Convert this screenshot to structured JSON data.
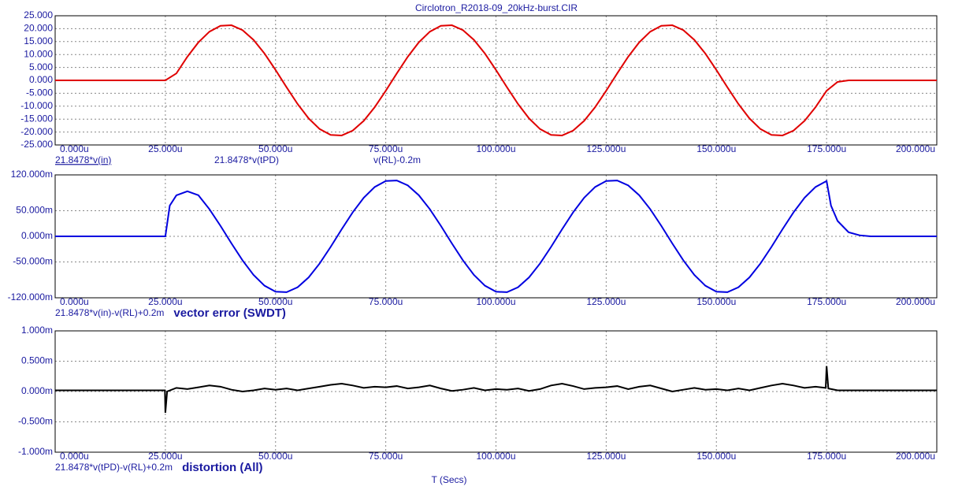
{
  "chart_data": [
    {
      "type": "line",
      "title": "Circlotron_R2018-09_20kHz-burst.CIR",
      "x": [
        0,
        2.5,
        5,
        7.5,
        10,
        12.5,
        15,
        17.5,
        20,
        22.5,
        25,
        27.5,
        30,
        32.5,
        35,
        37.5,
        40,
        42.5,
        45,
        47.5,
        50,
        52.5,
        55,
        57.5,
        60,
        62.5,
        65,
        67.5,
        70,
        72.5,
        75,
        77.5,
        80,
        82.5,
        85,
        87.5,
        90,
        92.5,
        95,
        97.5,
        100,
        102.5,
        105,
        107.5,
        110,
        112.5,
        115,
        117.5,
        120,
        122.5,
        125,
        127.5,
        130,
        132.5,
        135,
        137.5,
        140,
        142.5,
        145,
        147.5,
        150,
        152.5,
        155,
        157.5,
        160,
        162.5,
        165,
        167.5,
        170,
        172.5,
        175,
        177.5,
        180,
        182.5,
        185,
        187.5,
        190,
        192.5,
        195,
        197.5,
        200
      ],
      "series": [
        {
          "name": "v(RL)-0.2m",
          "color": "#e00000",
          "values": [
            0,
            0,
            0,
            0,
            0,
            0,
            0,
            0,
            0,
            0,
            0,
            2.69,
            9.15,
            14.72,
            18.84,
            21.12,
            21.33,
            19.45,
            15.67,
            10.36,
            4.03,
            -2.69,
            -9.15,
            -14.72,
            -18.84,
            -21.12,
            -21.33,
            -19.45,
            -15.67,
            -10.36,
            -4.03,
            2.69,
            9.15,
            14.72,
            18.84,
            21.12,
            21.33,
            19.45,
            15.67,
            10.36,
            4.03,
            -2.69,
            -9.15,
            -14.72,
            -18.84,
            -21.12,
            -21.33,
            -19.45,
            -15.67,
            -10.36,
            -4.03,
            2.69,
            9.15,
            14.72,
            18.84,
            21.12,
            21.33,
            19.45,
            15.67,
            10.36,
            4.03,
            -2.69,
            -9.15,
            -14.72,
            -18.84,
            -21.12,
            -21.33,
            -19.45,
            -15.67,
            -10.36,
            -4.03,
            -0.6,
            0,
            0,
            0,
            0,
            0,
            0,
            0,
            0,
            0
          ]
        }
      ],
      "expressions": [
        {
          "text": "21.8478*v(in)",
          "color": "#000000"
        },
        {
          "text": "21.8478*v(tPD)",
          "color": "#2020c0"
        }
      ],
      "xlim": [
        0,
        200
      ],
      "xticks": [
        {
          "value": 0,
          "label": "0.000u"
        },
        {
          "value": 25,
          "label": "25.000u"
        },
        {
          "value": 50,
          "label": "50.000u"
        },
        {
          "value": 75,
          "label": "75.000u"
        },
        {
          "value": 100,
          "label": "100.000u"
        },
        {
          "value": 125,
          "label": "125.000u"
        },
        {
          "value": 150,
          "label": "150.000u"
        },
        {
          "value": 175,
          "label": "175.000u"
        },
        {
          "value": 200,
          "label": "200.000u"
        }
      ],
      "ylim": [
        -25,
        25
      ],
      "yticks": [
        {
          "value": 25,
          "label": "25.000"
        },
        {
          "value": 20,
          "label": "20.000"
        },
        {
          "value": 15,
          "label": "15.000"
        },
        {
          "value": 10,
          "label": "10.000"
        },
        {
          "value": 5,
          "label": "5.000"
        },
        {
          "value": 0,
          "label": "0.000"
        },
        {
          "value": -5,
          "label": "-5.000"
        },
        {
          "value": -10,
          "label": "-10.000"
        },
        {
          "value": -15,
          "label": "-15.000"
        },
        {
          "value": -20,
          "label": "-20.000"
        },
        {
          "value": -25,
          "label": "-25.000"
        }
      ],
      "grid": true
    },
    {
      "type": "line",
      "x": [
        0,
        2.5,
        5,
        7.5,
        10,
        12.5,
        15,
        17.5,
        20,
        22.5,
        25,
        26,
        27.5,
        30,
        32.5,
        35,
        37.5,
        40,
        42.5,
        45,
        47.5,
        50,
        52.5,
        55,
        57.5,
        60,
        62.5,
        65,
        67.5,
        70,
        72.5,
        75,
        77.5,
        80,
        82.5,
        85,
        87.5,
        90,
        92.5,
        95,
        97.5,
        100,
        102.5,
        105,
        107.5,
        110,
        112.5,
        115,
        117.5,
        120,
        122.5,
        125,
        127.5,
        130,
        132.5,
        135,
        137.5,
        140,
        142.5,
        145,
        147.5,
        150,
        152.5,
        155,
        157.5,
        160,
        162.5,
        165,
        167.5,
        170,
        172.5,
        175,
        176,
        177.5,
        180,
        182.5,
        185,
        187.5,
        190,
        192.5,
        195,
        197.5,
        200
      ],
      "series": [
        {
          "name": "21.8478*v(in)-v(RL)+0.2m",
          "color": "#0000e0",
          "label_color": "#000000",
          "values": [
            0,
            0,
            0,
            0,
            0,
            0,
            0,
            0,
            0,
            0,
            0,
            60,
            80,
            88,
            80.2,
            53,
            20.6,
            -13.8,
            -46.8,
            -75.3,
            -96.4,
            -108.1,
            -109.1,
            -99.5,
            -80.2,
            -53,
            -20.6,
            13.8,
            46.8,
            75.3,
            96.4,
            108.1,
            109.1,
            99.5,
            80.2,
            53,
            20.6,
            -13.8,
            -46.8,
            -75.3,
            -96.4,
            -108.1,
            -109.1,
            -99.5,
            -80.2,
            -53,
            -20.6,
            13.8,
            46.8,
            75.3,
            96.4,
            108.1,
            109.1,
            99.5,
            80.2,
            53,
            20.6,
            -13.8,
            -46.8,
            -75.3,
            -96.4,
            -108.1,
            -109.1,
            -99.5,
            -80.2,
            -53,
            -20.6,
            13.8,
            46.8,
            75.3,
            96.4,
            108.1,
            60,
            30,
            8,
            2,
            0,
            0,
            0,
            0,
            0,
            0,
            0
          ]
        }
      ],
      "annotation": "vector error (SWDT)",
      "xlim": [
        0,
        200
      ],
      "xticks": [
        {
          "value": 0,
          "label": "0.000u"
        },
        {
          "value": 25,
          "label": "25.000u"
        },
        {
          "value": 50,
          "label": "50.000u"
        },
        {
          "value": 75,
          "label": "75.000u"
        },
        {
          "value": 100,
          "label": "100.000u"
        },
        {
          "value": 125,
          "label": "125.000u"
        },
        {
          "value": 150,
          "label": "150.000u"
        },
        {
          "value": 175,
          "label": "175.000u"
        },
        {
          "value": 200,
          "label": "200.000u"
        }
      ],
      "ylim": [
        -120,
        120
      ],
      "yticks": [
        {
          "value": 120,
          "label": "120.000m"
        },
        {
          "value": 50,
          "label": "50.000m"
        },
        {
          "value": 0,
          "label": "0.000m"
        },
        {
          "value": -50,
          "label": "-50.000m"
        },
        {
          "value": -120,
          "label": "-120.000m"
        }
      ],
      "grid": true
    },
    {
      "type": "line",
      "x_label": "T (Secs)",
      "x": [
        0,
        2.5,
        5,
        7.5,
        10,
        12.5,
        15,
        17.5,
        20,
        22.5,
        24.9,
        25,
        25.4,
        27.5,
        30,
        32.5,
        35,
        37.5,
        40,
        42.5,
        45,
        47.5,
        50,
        52.5,
        55,
        57.5,
        60,
        62.5,
        65,
        67.5,
        70,
        72.5,
        75,
        77.5,
        80,
        82.5,
        85,
        87.5,
        90,
        92.5,
        95,
        97.5,
        100,
        102.5,
        105,
        107.5,
        110,
        112.5,
        115,
        117.5,
        120,
        122.5,
        125,
        127.5,
        130,
        132.5,
        135,
        137.5,
        140,
        142.5,
        145,
        147.5,
        150,
        152.5,
        155,
        157.5,
        160,
        162.5,
        165,
        167.5,
        170,
        172.5,
        174.8,
        175,
        175.4,
        177.5,
        180,
        182.5,
        185,
        187.5,
        190,
        192.5,
        195,
        197.5,
        200
      ],
      "series": [
        {
          "name": "21.8478*v(tPD)-v(RL)+0.2m",
          "color": "#000000",
          "label_color": "#000000",
          "values": [
            0.02,
            0.02,
            0.02,
            0.02,
            0.02,
            0.02,
            0.02,
            0.02,
            0.02,
            0.02,
            0.02,
            -0.35,
            0,
            0.06,
            0.04,
            0.07,
            0.1,
            0.08,
            0.03,
            0,
            0.02,
            0.05,
            0.03,
            0.05,
            0.02,
            0.05,
            0.08,
            0.11,
            0.13,
            0.1,
            0.06,
            0.08,
            0.07,
            0.09,
            0.05,
            0.07,
            0.1,
            0.05,
            0.01,
            0.03,
            0.06,
            0.02,
            0.04,
            0.03,
            0.05,
            0.01,
            0.04,
            0.1,
            0.13,
            0.09,
            0.04,
            0.06,
            0.07,
            0.09,
            0.04,
            0.08,
            0.1,
            0.05,
            0,
            0.03,
            0.06,
            0.03,
            0.04,
            0.02,
            0.05,
            0.02,
            0.06,
            0.1,
            0.13,
            0.1,
            0.06,
            0.08,
            0.06,
            0.42,
            0.05,
            0.02,
            0.02,
            0.02,
            0.02,
            0.02,
            0.02,
            0.02,
            0.02,
            0.02,
            0.02
          ]
        }
      ],
      "annotation": "distortion (All)",
      "xlim": [
        0,
        200
      ],
      "xticks": [
        {
          "value": 0,
          "label": "0.000u"
        },
        {
          "value": 25,
          "label": "25.000u"
        },
        {
          "value": 50,
          "label": "50.000u"
        },
        {
          "value": 75,
          "label": "75.000u"
        },
        {
          "value": 100,
          "label": "100.000u"
        },
        {
          "value": 125,
          "label": "125.000u"
        },
        {
          "value": 150,
          "label": "150.000u"
        },
        {
          "value": 175,
          "label": "175.000u"
        },
        {
          "value": 200,
          "label": "200.000u"
        }
      ],
      "ylim": [
        -1,
        1
      ],
      "yticks": [
        {
          "value": 1,
          "label": "1.000m"
        },
        {
          "value": 0.5,
          "label": "0.500m"
        },
        {
          "value": 0,
          "label": "0.000m"
        },
        {
          "value": -0.5,
          "label": "-0.500m"
        },
        {
          "value": -1,
          "label": "-1.000m"
        }
      ],
      "grid": true
    }
  ]
}
